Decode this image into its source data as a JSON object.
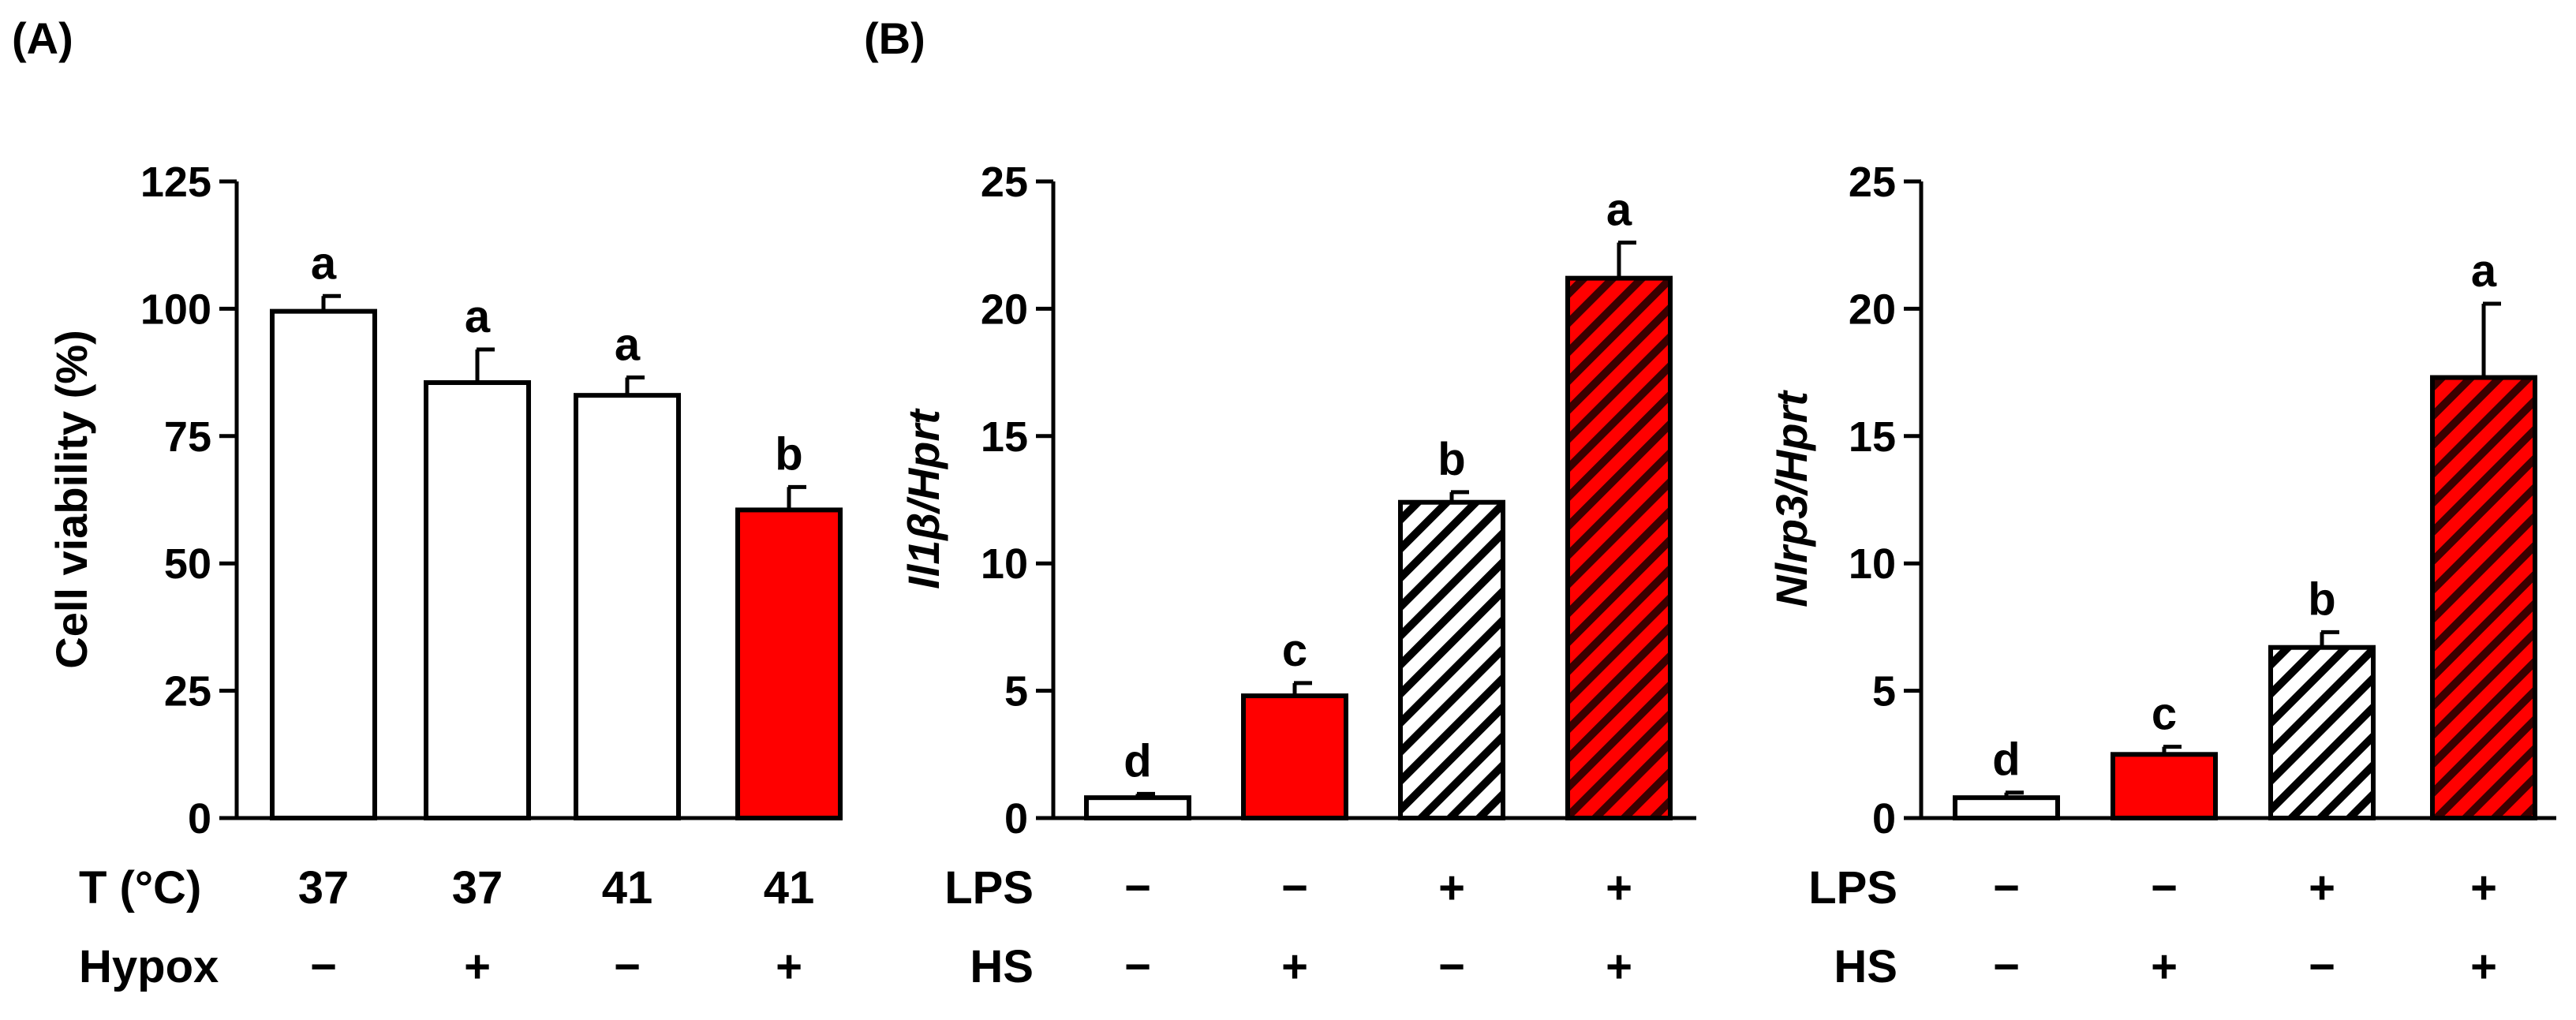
{
  "panel_labels": {
    "a": "(A)",
    "b": "(B)"
  },
  "colors": {
    "white": "#ffffff",
    "red": "#ff0000",
    "black": "#000000",
    "hatch_dark": "#3a0000"
  },
  "chart_data": [
    {
      "id": "viability",
      "type": "bar",
      "panel": "(A)",
      "title": "",
      "ylabel": "Cell viability (%)",
      "ylabel_parts": [
        {
          "text": "Cell viability (%)",
          "italic": false
        }
      ],
      "ylim": [
        0,
        125
      ],
      "yticks": [
        0,
        25,
        50,
        75,
        100,
        125
      ],
      "categories": [
        "37 / −",
        "37 / +",
        "41 / −",
        "41 / +"
      ],
      "values": [
        99.5,
        85.5,
        83,
        60.5
      ],
      "errors": [
        3,
        6.5,
        3.5,
        4.5
      ],
      "sig_letters": [
        "a",
        "a",
        "a",
        "b"
      ],
      "fills": [
        "white",
        "white",
        "white",
        "red"
      ],
      "conditions": [
        {
          "label": "T (°C)",
          "values": [
            "37",
            "37",
            "41",
            "41"
          ]
        },
        {
          "label": "Hypox",
          "values": [
            "−",
            "+",
            "−",
            "+"
          ]
        }
      ]
    },
    {
      "id": "il1b",
      "type": "bar",
      "panel": "(B)",
      "title": "",
      "ylabel": "Il1β/Hprt",
      "ylabel_parts": [
        {
          "text": "Il1",
          "italic": true
        },
        {
          "text": "β",
          "italic": true
        },
        {
          "text": "/Hprt",
          "italic": true
        }
      ],
      "ylim": [
        0,
        25
      ],
      "yticks": [
        0,
        5,
        10,
        15,
        20,
        25
      ],
      "categories": [
        "−/−",
        "−/+",
        "+/−",
        "+/+"
      ],
      "values": [
        0.8,
        4.8,
        12.4,
        21.2
      ],
      "errors": [
        0.15,
        0.5,
        0.4,
        1.4
      ],
      "sig_letters": [
        "d",
        "c",
        "b",
        "a"
      ],
      "fills": [
        "white",
        "red",
        "hatch-white",
        "hatch-red"
      ],
      "conditions": [
        {
          "label": "LPS",
          "values": [
            "−",
            "−",
            "+",
            "+"
          ]
        },
        {
          "label": "HS",
          "values": [
            "−",
            "+",
            "−",
            "+"
          ]
        }
      ]
    },
    {
      "id": "nlrp3",
      "type": "bar",
      "panel": "",
      "title": "",
      "ylabel": "Nlrp3/Hprt",
      "ylabel_parts": [
        {
          "text": "Nlrp3/Hprt",
          "italic": true
        }
      ],
      "ylim": [
        0,
        25
      ],
      "yticks": [
        0,
        5,
        10,
        15,
        20,
        25
      ],
      "categories": [
        "−/−",
        "−/+",
        "+/−",
        "+/+"
      ],
      "values": [
        0.8,
        2.5,
        6.7,
        17.3
      ],
      "errors": [
        0.2,
        0.3,
        0.6,
        2.9
      ],
      "sig_letters": [
        "d",
        "c",
        "b",
        "a"
      ],
      "fills": [
        "white",
        "red",
        "hatch-white",
        "hatch-red"
      ],
      "conditions": [
        {
          "label": "LPS",
          "values": [
            "−",
            "−",
            "+",
            "+"
          ]
        },
        {
          "label": "HS",
          "values": [
            "−",
            "+",
            "−",
            "+"
          ]
        }
      ]
    }
  ]
}
